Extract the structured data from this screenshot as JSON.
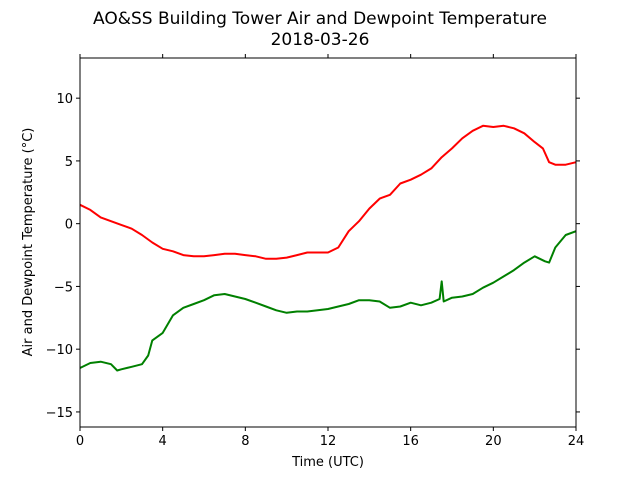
{
  "chart_data": {
    "type": "line",
    "title": "AO&SS Building Tower Air and Dewpoint Temperature",
    "subtitle": "2018-03-26",
    "xlabel": "Time (UTC)",
    "ylabel": "Air and Dewpoint Temperature (°C)",
    "xlim": [
      0,
      24
    ],
    "ylim": [
      -16.2,
      13.2
    ],
    "xticks": [
      0,
      4,
      8,
      12,
      16,
      20,
      24
    ],
    "xtick_labels": [
      "0",
      "4",
      "8",
      "12",
      "16",
      "20",
      "24"
    ],
    "yticks": [
      -15,
      -10,
      -5,
      0,
      5,
      10
    ],
    "ytick_labels": [
      "−15",
      "−10",
      "−5",
      "0",
      "5",
      "10"
    ],
    "grid": false,
    "series": [
      {
        "color": "#ff0000",
        "x": [
          0,
          0.5,
          1,
          1.5,
          2,
          2.5,
          3,
          3.5,
          4,
          4.5,
          5,
          5.5,
          6,
          6.5,
          7,
          7.5,
          8,
          8.5,
          9,
          9.5,
          10,
          10.5,
          11,
          11.5,
          12,
          12.5,
          13,
          13.5,
          14,
          14.5,
          15,
          15.5,
          16,
          16.5,
          17,
          17.5,
          18,
          18.5,
          19,
          19.5,
          20,
          20.5,
          21,
          21.5,
          22,
          22.4,
          22.7,
          23,
          23.5,
          24
        ],
        "values": [
          1.5,
          1.1,
          0.5,
          0.2,
          -0.1,
          -0.4,
          -0.9,
          -1.5,
          -2.0,
          -2.2,
          -2.5,
          -2.6,
          -2.6,
          -2.5,
          -2.4,
          -2.4,
          -2.5,
          -2.6,
          -2.8,
          -2.8,
          -2.7,
          -2.5,
          -2.3,
          -2.3,
          -2.3,
          -1.9,
          -0.6,
          0.2,
          1.2,
          2.0,
          2.3,
          3.2,
          3.5,
          3.9,
          4.4,
          5.3,
          6.0,
          6.8,
          7.4,
          7.8,
          7.7,
          7.8,
          7.6,
          7.2,
          6.5,
          6.0,
          4.9,
          4.7,
          4.7,
          4.9
        ]
      },
      {
        "color": "#008000",
        "x": [
          0,
          0.5,
          1,
          1.5,
          1.8,
          2,
          2.5,
          3,
          3.3,
          3.5,
          4,
          4.5,
          5,
          5.5,
          6,
          6.5,
          7,
          7.5,
          8,
          8.5,
          9,
          9.5,
          10,
          10.5,
          11,
          11.5,
          12,
          12.5,
          13,
          13.5,
          14,
          14.5,
          15,
          15.5,
          16,
          16.5,
          17,
          17.4,
          17.5,
          17.6,
          18,
          18.5,
          19,
          19.5,
          20,
          20.5,
          21,
          21.5,
          22,
          22.5,
          22.7,
          23,
          23.5,
          24
        ],
        "values": [
          -11.5,
          -11.1,
          -11.0,
          -11.2,
          -11.7,
          -11.6,
          -11.4,
          -11.2,
          -10.5,
          -9.3,
          -8.7,
          -7.3,
          -6.7,
          -6.4,
          -6.1,
          -5.7,
          -5.6,
          -5.8,
          -6.0,
          -6.3,
          -6.6,
          -6.9,
          -7.1,
          -7.0,
          -7.0,
          -6.9,
          -6.8,
          -6.6,
          -6.4,
          -6.1,
          -6.1,
          -6.2,
          -6.7,
          -6.6,
          -6.3,
          -6.5,
          -6.3,
          -6.0,
          -4.6,
          -6.2,
          -5.9,
          -5.8,
          -5.6,
          -5.1,
          -4.7,
          -4.2,
          -3.7,
          -3.1,
          -2.6,
          -3.0,
          -3.1,
          -1.9,
          -0.9,
          -0.6
        ]
      }
    ]
  }
}
